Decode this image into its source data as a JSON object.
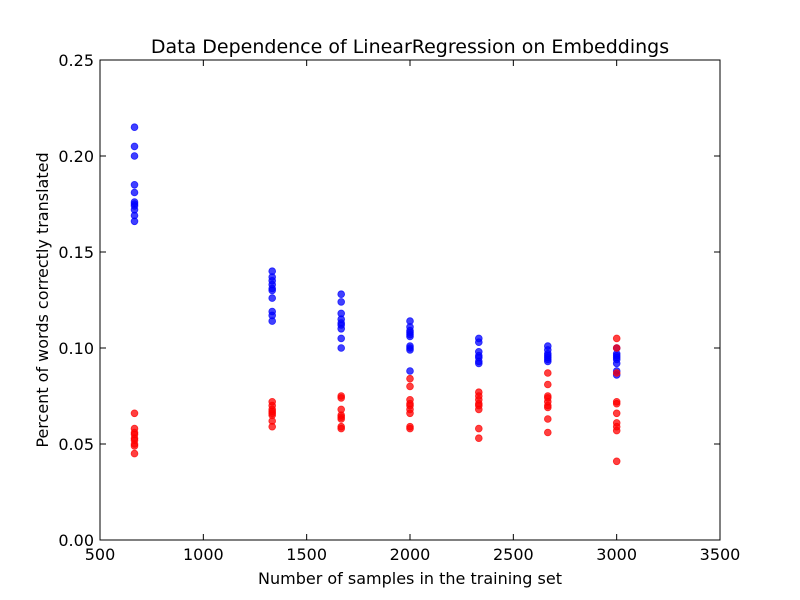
{
  "chart_data": {
    "type": "scatter",
    "title": "Data Dependence of LinearRegression on Embeddings",
    "xlabel": "Number of samples in the training set",
    "ylabel": "Percent of words correctly translated",
    "xlim": [
      500,
      3500
    ],
    "ylim": [
      0.0,
      0.25
    ],
    "xticks": [
      "500",
      "1000",
      "1500",
      "2000",
      "2500",
      "3000",
      "3500"
    ],
    "yticks": [
      "0.00",
      "0.05",
      "0.10",
      "0.15",
      "0.20",
      "0.25"
    ],
    "grid": false,
    "legend": "none",
    "series": [
      {
        "color": "#0000ff",
        "x": [
          667,
          667,
          667,
          667,
          667,
          667,
          667,
          667,
          667,
          667,
          667,
          1333,
          1333,
          1333,
          1333,
          1333,
          1333,
          1333,
          1333,
          1333,
          1333,
          1667,
          1667,
          1667,
          1667,
          1667,
          1667,
          1667,
          1667,
          1667,
          2000,
          2000,
          2000,
          2000,
          2000,
          2000,
          2000,
          2000,
          2000,
          2000,
          2333,
          2333,
          2333,
          2333,
          2333,
          2333,
          2333,
          2667,
          2667,
          2667,
          2667,
          2667,
          2667,
          2667,
          3000,
          3000,
          3000,
          3000,
          3000,
          3000,
          3000,
          3000
        ],
        "y": [
          0.215,
          0.205,
          0.2,
          0.185,
          0.181,
          0.176,
          0.174,
          0.172,
          0.169,
          0.166,
          0.175,
          0.14,
          0.137,
          0.135,
          0.133,
          0.131,
          0.13,
          0.126,
          0.119,
          0.117,
          0.114,
          0.128,
          0.124,
          0.118,
          0.115,
          0.113,
          0.112,
          0.11,
          0.105,
          0.1,
          0.114,
          0.111,
          0.109,
          0.108,
          0.107,
          0.106,
          0.101,
          0.1,
          0.099,
          0.088,
          0.105,
          0.103,
          0.098,
          0.096,
          0.095,
          0.093,
          0.092,
          0.101,
          0.099,
          0.097,
          0.096,
          0.095,
          0.094,
          0.093,
          0.1,
          0.097,
          0.096,
          0.095,
          0.094,
          0.092,
          0.088,
          0.086
        ]
      },
      {
        "color": "#ff0000",
        "x": [
          667,
          667,
          667,
          667,
          667,
          667,
          667,
          667,
          667,
          1333,
          1333,
          1333,
          1333,
          1333,
          1333,
          1333,
          1333,
          1667,
          1667,
          1667,
          1667,
          1667,
          1667,
          1667,
          1667,
          2000,
          2000,
          2000,
          2000,
          2000,
          2000,
          2000,
          2000,
          2000,
          2333,
          2333,
          2333,
          2333,
          2333,
          2333,
          2333,
          2333,
          2667,
          2667,
          2667,
          2667,
          2667,
          2667,
          2667,
          2667,
          2667,
          3000,
          3000,
          3000,
          3000,
          3000,
          3000,
          3000,
          3000,
          3000,
          3000
        ],
        "y": [
          0.066,
          0.058,
          0.056,
          0.055,
          0.053,
          0.052,
          0.05,
          0.049,
          0.045,
          0.072,
          0.07,
          0.068,
          0.067,
          0.066,
          0.065,
          0.062,
          0.059,
          0.075,
          0.074,
          0.068,
          0.065,
          0.064,
          0.063,
          0.059,
          0.058,
          0.084,
          0.08,
          0.073,
          0.071,
          0.07,
          0.068,
          0.066,
          0.059,
          0.058,
          0.077,
          0.075,
          0.073,
          0.071,
          0.07,
          0.068,
          0.058,
          0.053,
          0.087,
          0.081,
          0.075,
          0.074,
          0.072,
          0.07,
          0.069,
          0.063,
          0.056,
          0.105,
          0.1,
          0.087,
          0.072,
          0.071,
          0.066,
          0.061,
          0.059,
          0.057,
          0.041
        ]
      }
    ]
  }
}
